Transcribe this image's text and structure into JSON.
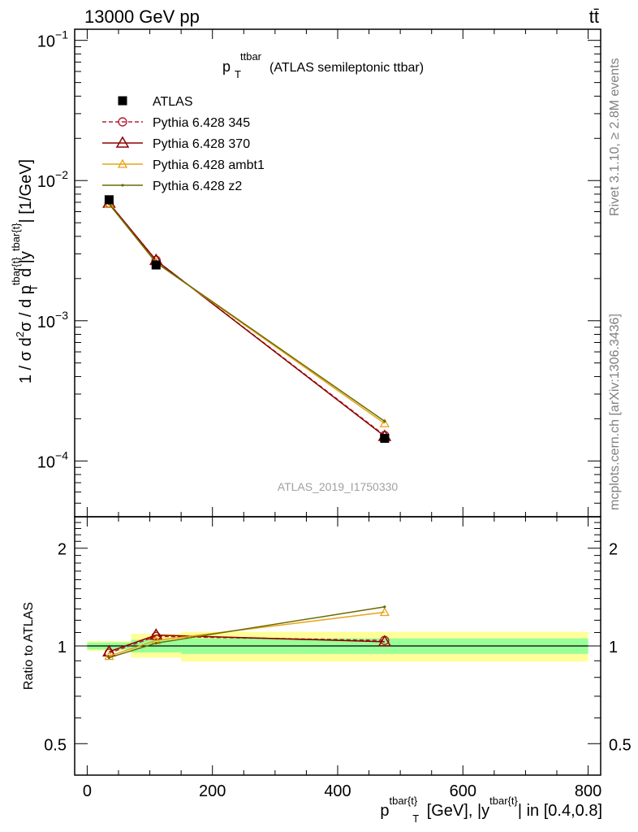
{
  "header": {
    "left": "13000 GeV pp",
    "right": "tt̄"
  },
  "side_labels": {
    "rivet": "Rivet 3.1.10, ≥ 2.8M events",
    "mcplots": "mcplots.cern.ch [arXiv:1306.3436]"
  },
  "watermark": "ATLAS_2019_I1750330",
  "plot_title": {
    "main": "p",
    "sub": "T",
    "sup": "ttbar",
    "rest": "(ATLAS semileptonic ttbar)"
  },
  "ylabel_main": "1 / σ d²σ / d p^{tbar{t}}_T d |y^{tbar{t}}| [1/GeV]",
  "ylabel_ratio": "Ratio to ATLAS",
  "xlabel": "p^{tbar{t}}_T [GeV], |y^{tbar{t}}| in [0.4,0.8]",
  "colors": {
    "data": "#000000",
    "p345": "#b22234",
    "p370": "#8b0000",
    "ambt1": "#e8a317",
    "z2": "#6b6b00",
    "band_inner": "#99ff99",
    "band_outer": "#ffff99"
  },
  "chart_data": {
    "type": "line",
    "x_range": [
      -20,
      820
    ],
    "x_ticks": [
      {
        "v": 0,
        "label": "0"
      },
      {
        "v": 200,
        "label": "200"
      },
      {
        "v": 400,
        "label": "400"
      },
      {
        "v": 600,
        "label": "600"
      },
      {
        "v": 800,
        "label": "800"
      }
    ],
    "main": {
      "yscale": "log",
      "ylim": [
        4e-05,
        0.12
      ],
      "y_ticks": [
        {
          "v": 0.1,
          "base": "10",
          "exp": "−1"
        },
        {
          "v": 0.01,
          "base": "10",
          "exp": "−2"
        },
        {
          "v": 0.001,
          "base": "10",
          "exp": "−3"
        },
        {
          "v": 0.0001,
          "base": "10",
          "exp": "−4"
        }
      ]
    },
    "ratio": {
      "yscale": "log",
      "ylim": [
        0.4,
        2.5
      ],
      "y_ticks": [
        {
          "v": 0.5,
          "label": "0.5"
        },
        {
          "v": 1,
          "label": "1"
        },
        {
          "v": 2,
          "label": "2"
        }
      ]
    },
    "bins": [
      {
        "xlo": 0,
        "xhi": 70
      },
      {
        "xlo": 70,
        "xhi": 150
      },
      {
        "xlo": 150,
        "xhi": 800
      }
    ],
    "bands": [
      {
        "xlo": 0,
        "xhi": 70,
        "inner": [
          0.975,
          1.025
        ],
        "outer": [
          0.965,
          1.035
        ]
      },
      {
        "xlo": 70,
        "xhi": 150,
        "inner": [
          0.955,
          1.045
        ],
        "outer": [
          0.92,
          1.09
        ]
      },
      {
        "xlo": 150,
        "xhi": 800,
        "inner": [
          0.945,
          1.055
        ],
        "outer": [
          0.895,
          1.105
        ]
      }
    ],
    "legend_placement": "top-left",
    "series": [
      {
        "key": "data",
        "name": "ATLAS",
        "marker": "square",
        "dash": "",
        "x": [
          35,
          110,
          475
        ],
        "y": [
          0.0073,
          0.0025,
          0.000145
        ],
        "ratio": [
          1.0,
          1.0,
          1.0
        ]
      },
      {
        "key": "p345",
        "name": "Pythia 6.428 345",
        "marker": "circle",
        "dash": "5,3",
        "x": [
          35,
          110,
          475
        ],
        "y": [
          0.0069,
          0.0027,
          0.000152
        ],
        "ratio": [
          0.95,
          1.07,
          1.04
        ]
      },
      {
        "key": "p370",
        "name": "Pythia 6.428 370",
        "marker": "triangle",
        "dash": "",
        "x": [
          35,
          110,
          475
        ],
        "y": [
          0.0069,
          0.0027,
          0.00015
        ],
        "ratio": [
          0.96,
          1.08,
          1.03
        ]
      },
      {
        "key": "ambt1",
        "name": "Pythia 6.428 ambt1",
        "marker": "triangle-small",
        "dash": "",
        "x": [
          35,
          110,
          475
        ],
        "y": [
          0.0068,
          0.0026,
          0.000185
        ],
        "ratio": [
          0.93,
          1.04,
          1.27
        ]
      },
      {
        "key": "z2",
        "name": "Pythia 6.428 z2",
        "marker": "dot",
        "dash": "",
        "x": [
          35,
          110,
          475
        ],
        "y": [
          0.0068,
          0.0026,
          0.000192
        ],
        "ratio": [
          0.92,
          1.02,
          1.32
        ]
      }
    ]
  }
}
